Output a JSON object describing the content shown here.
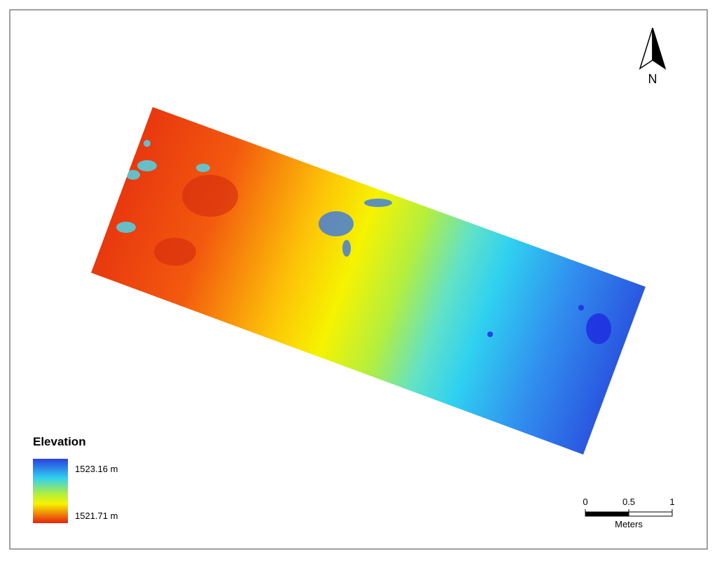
{
  "legend": {
    "title": "Elevation",
    "high_label": "1523.16 m",
    "low_label": "1521.71 m"
  },
  "north_arrow": {
    "label": "N"
  },
  "scale_bar": {
    "ticks": [
      0,
      0.5,
      1
    ],
    "unit": "Meters"
  }
}
